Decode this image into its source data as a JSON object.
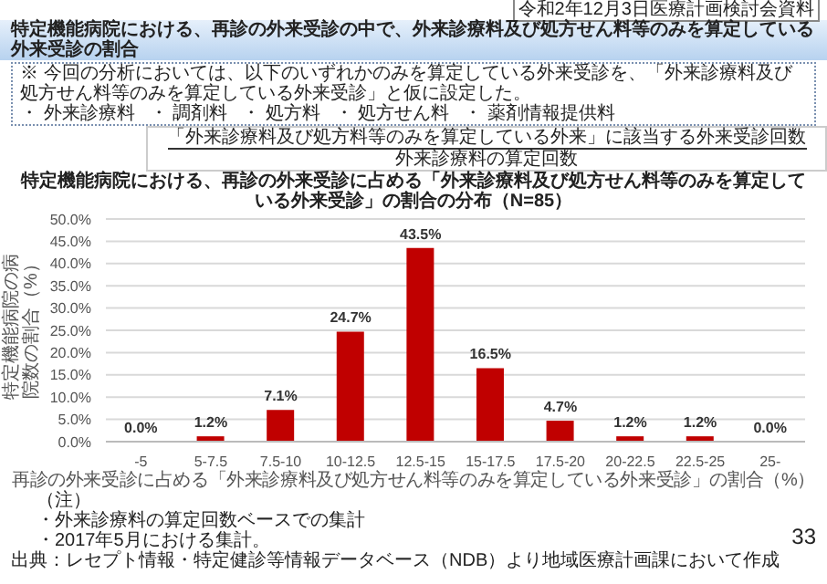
{
  "chart_data": {
    "type": "bar",
    "title": "特定機能病院における、再診の外来受診の中で、外来診療料及び処方せん料等のみを算定している外来受診の割合",
    "subtitle": "特定機能病院における、再診の外来受診に占める「外来診療料及び処方せん料等のみを算定している外来受診」の割合の分布（N=85）",
    "xlabel": "再診の外来受診に占める「外来診療料及び処方せん料等のみを算定している外来受診」の割合（%）",
    "ylabel": "特定機能病院の病院数の割合（%）",
    "annotations": [
      "令和2年12月3日医療計画検討会資料",
      "※ 今回の分析においては、以下のいずれかのみを算定している外来受診を、「外来診療料及び処方せん料等のみを算定している外来受診」と仮に設定した。",
      "・ 外来診療料",
      "・ 調剤料",
      "・ 処方料",
      "・ 処方せん料",
      "・ 薬剤情報提供料",
      "「外来診療料及び処方料等のみを算定している外来」に該当する外来受診回数",
      "外来診療料の算定回数",
      "（注）",
      "・外来診療料の算定回数ベースでの集計",
      "・2017年5月における集計。",
      "出典：レセプト情報・特定健診等情報データベース（NDB）より地域医療計画課において作成",
      "33"
    ],
    "categories": [
      "-5",
      "5-7.5",
      "7.5-10",
      "10-12.5",
      "12.5-15",
      "15-17.5",
      "17.5-20",
      "20-22.5",
      "22.5-25",
      "25-"
    ],
    "values": [
      0,
      1.2,
      7.1,
      24.7,
      43.5,
      16.5,
      4.7,
      1.2,
      1.2,
      0
    ],
    "value_labels": [
      "0.0%",
      "1.2%",
      "7.1%",
      "24.7%",
      "43.5%",
      "16.5%",
      "4.7%",
      "1.2%",
      "1.2%",
      "0.0%"
    ],
    "color": "#c00000",
    "ylim": [
      0,
      50
    ],
    "yticks": [
      {
        "value": 0,
        "label": "0.0%"
      },
      {
        "value": 5,
        "label": "5.0%"
      },
      {
        "value": 10,
        "label": "10.0%"
      },
      {
        "value": 15,
        "label": "15.0%"
      },
      {
        "value": 20,
        "label": "20.0%"
      },
      {
        "value": 25,
        "label": "25.0%"
      },
      {
        "value": 30,
        "label": "30.0%"
      },
      {
        "value": 35,
        "label": "35.0%"
      },
      {
        "value": 40,
        "label": "40.0%"
      },
      {
        "value": 45,
        "label": "45.0%"
      },
      {
        "value": 50,
        "label": "50.0%"
      }
    ],
    "grid": "y"
  }
}
